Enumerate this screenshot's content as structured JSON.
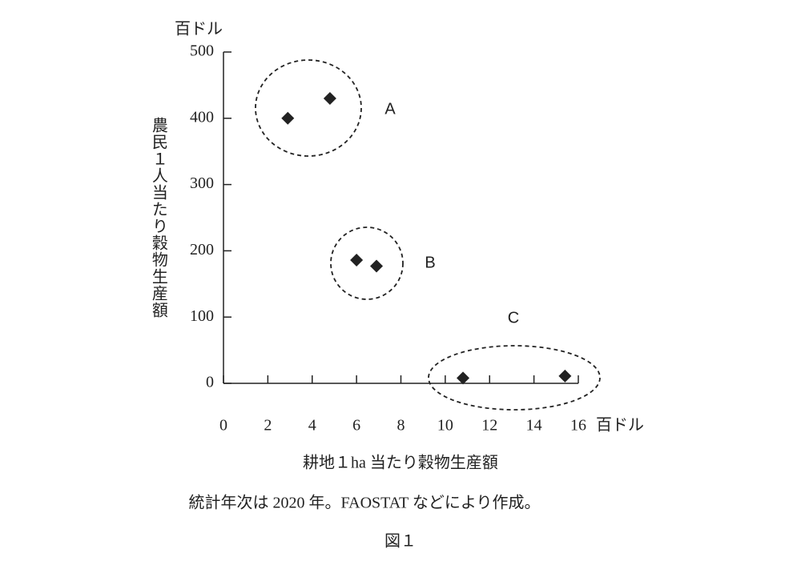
{
  "chart_data": {
    "type": "scatter",
    "y_unit": "百ドル",
    "x_unit": "百ドル",
    "x_label": "耕地１ha 当たり穀物生産額",
    "y_label": "農民１人当たり穀物生産額",
    "note": "統計年次は 2020 年。FAOSTAT などにより作成。",
    "caption": "図１",
    "x": [
      2.9,
      4.8,
      6.0,
      6.9,
      10.8,
      15.4
    ],
    "values": [
      400,
      430,
      186,
      177,
      8,
      11
    ],
    "color": "#222222",
    "groups": [
      "A",
      "B",
      "C"
    ],
    "xlim": [
      0,
      16
    ],
    "xticks": [
      0,
      2,
      4,
      6,
      8,
      10,
      12,
      14,
      16
    ],
    "ylim": [
      0,
      500
    ],
    "yticks": [
      0,
      100,
      200,
      300,
      400,
      500
    ]
  }
}
